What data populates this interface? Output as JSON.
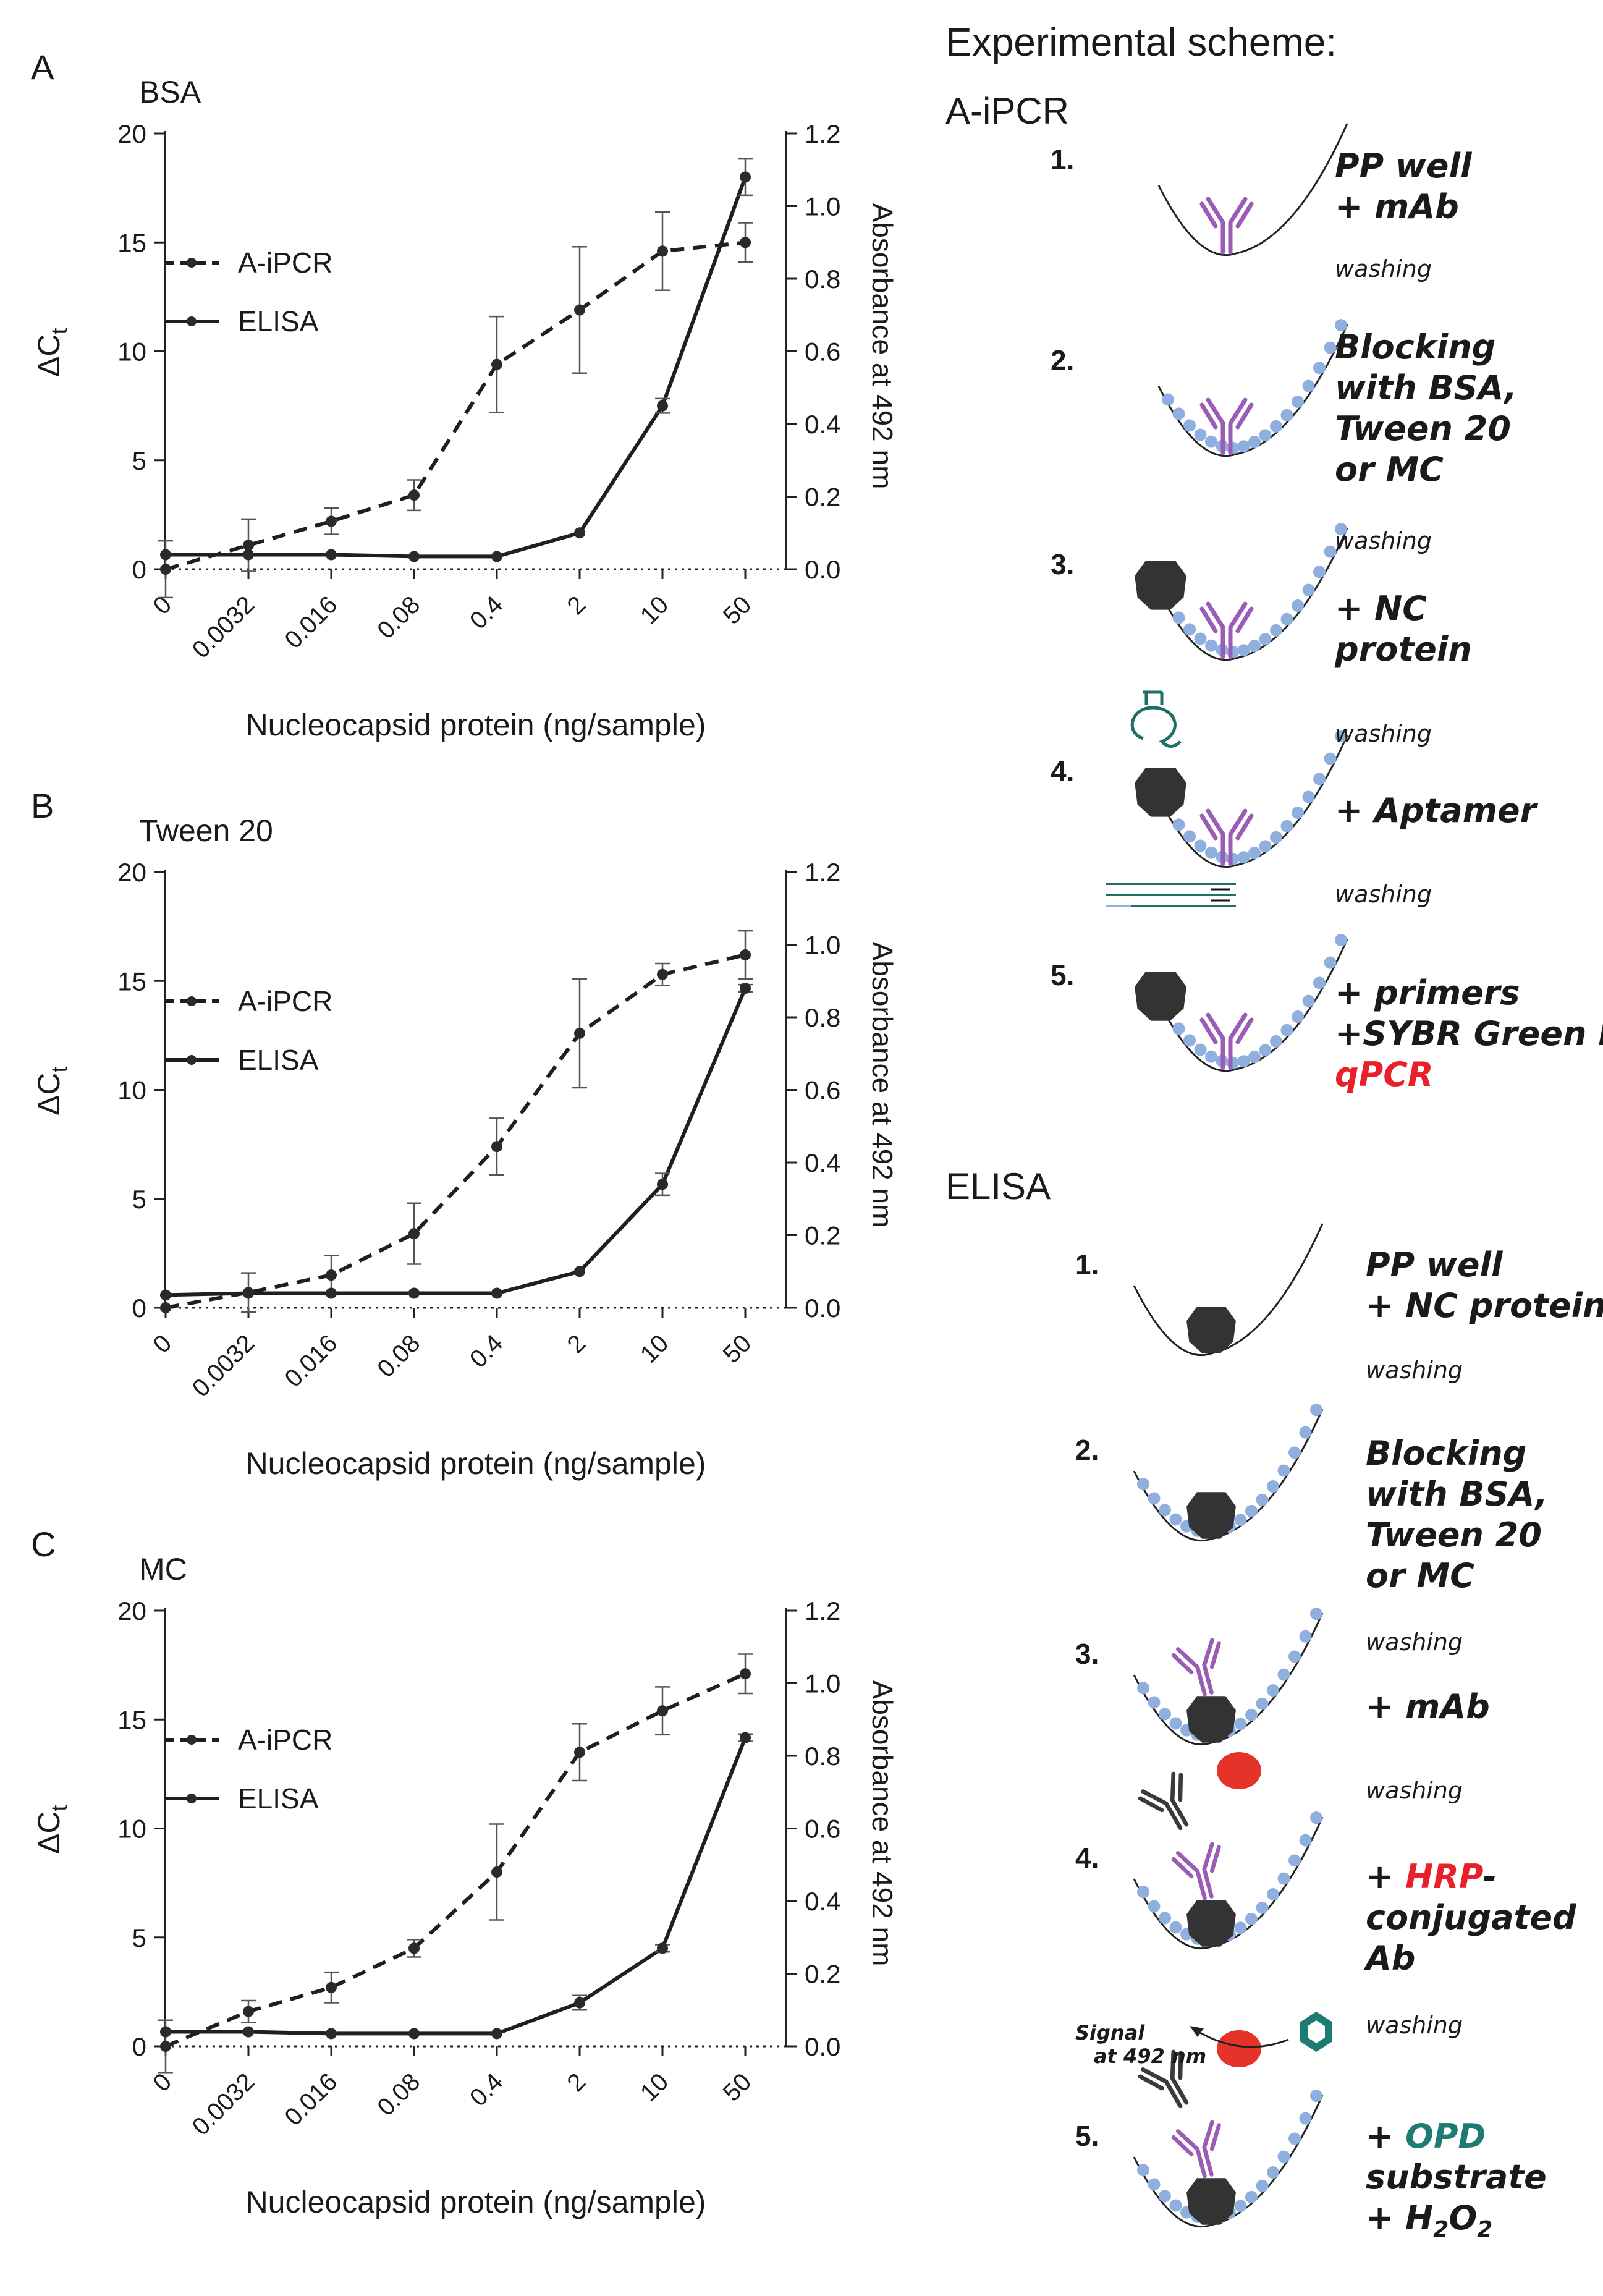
{
  "chart_data": [
    {
      "type": "line",
      "panel_letter": "A",
      "title": "BSA",
      "categories": [
        "0",
        "0.0032",
        "0.016",
        "0.08",
        "0.4",
        "2",
        "10",
        "50"
      ],
      "xlabel": "Nucleocapsid protein (ng/sample)",
      "ylabel_left": "ΔC",
      "ylabel_left_sub": "t",
      "ylabel_right": "Absorbance at 492 nm",
      "ylim_left": [
        0,
        20
      ],
      "ylim_right": [
        0,
        1.2
      ],
      "yticks_left": [
        "0",
        "5",
        "10",
        "15",
        "20"
      ],
      "yticks_right": [
        "0.0",
        "0.2",
        "0.4",
        "0.6",
        "0.8",
        "1.0",
        "1.2"
      ],
      "series": [
        {
          "name": "A-iPCR",
          "style": "dashed",
          "axis": "left",
          "values": [
            0.0,
            1.1,
            2.2,
            3.4,
            9.4,
            11.9,
            14.6,
            15.0
          ],
          "errors": [
            1.3,
            1.2,
            0.6,
            0.7,
            2.2,
            2.9,
            1.8,
            0.9
          ]
        },
        {
          "name": "ELISA",
          "style": "solid",
          "axis": "right",
          "values": [
            0.04,
            0.04,
            0.04,
            0.035,
            0.035,
            0.1,
            0.45,
            1.08
          ],
          "errors": [
            0.0,
            0.0,
            0.0,
            0.0,
            0.0,
            0.0,
            0.02,
            0.05
          ]
        }
      ]
    },
    {
      "type": "line",
      "panel_letter": "B",
      "title": "Tween 20",
      "categories": [
        "0",
        "0.0032",
        "0.016",
        "0.08",
        "0.4",
        "2",
        "10",
        "50"
      ],
      "xlabel": "Nucleocapsid protein (ng/sample)",
      "ylabel_left": "ΔC",
      "ylabel_left_sub": "t",
      "ylabel_right": "Absorbance at 492 nm",
      "ylim_left": [
        0,
        20
      ],
      "ylim_right": [
        0,
        1.2
      ],
      "yticks_left": [
        "0",
        "5",
        "10",
        "15",
        "20"
      ],
      "yticks_right": [
        "0.0",
        "0.2",
        "0.4",
        "0.6",
        "0.8",
        "1.0",
        "1.2"
      ],
      "series": [
        {
          "name": "A-iPCR",
          "style": "dashed",
          "axis": "left",
          "values": [
            0.0,
            0.7,
            1.5,
            3.4,
            7.4,
            12.6,
            15.3,
            16.2
          ],
          "errors": [
            0.0,
            0.9,
            0.9,
            1.4,
            1.3,
            2.5,
            0.5,
            1.1
          ]
        },
        {
          "name": "ELISA",
          "style": "solid",
          "axis": "right",
          "values": [
            0.035,
            0.04,
            0.04,
            0.04,
            0.04,
            0.1,
            0.34,
            0.88
          ],
          "errors": [
            0.0,
            0.0,
            0.0,
            0.0,
            0.0,
            0.0,
            0.03,
            0.01
          ]
        }
      ]
    },
    {
      "type": "line",
      "panel_letter": "C",
      "title": "MC",
      "categories": [
        "0",
        "0.0032",
        "0.016",
        "0.08",
        "0.4",
        "2",
        "10",
        "50"
      ],
      "xlabel": "Nucleocapsid protein (ng/sample)",
      "ylabel_left": "ΔC",
      "ylabel_left_sub": "t",
      "ylabel_right": "Absorbance at 492 nm",
      "ylim_left": [
        0,
        20
      ],
      "ylim_right": [
        0,
        1.2
      ],
      "yticks_left": [
        "0",
        "5",
        "10",
        "15",
        "20"
      ],
      "yticks_right": [
        "0.0",
        "0.2",
        "0.4",
        "0.6",
        "0.8",
        "1.0",
        "1.2"
      ],
      "series": [
        {
          "name": "A-iPCR",
          "style": "dashed",
          "axis": "left",
          "values": [
            0.0,
            1.6,
            2.7,
            4.5,
            8.0,
            13.5,
            15.4,
            17.1
          ],
          "errors": [
            1.2,
            0.5,
            0.7,
            0.4,
            2.2,
            1.3,
            1.1,
            0.9
          ]
        },
        {
          "name": "ELISA",
          "style": "solid",
          "axis": "right",
          "values": [
            0.04,
            0.04,
            0.035,
            0.035,
            0.035,
            0.12,
            0.27,
            0.85
          ],
          "errors": [
            0.0,
            0.0,
            0.0,
            0.0,
            0.0,
            0.02,
            0.01,
            0.01
          ]
        }
      ]
    }
  ],
  "scheme": {
    "title": "Experimental scheme:",
    "aipcr": {
      "heading": "A-iPCR",
      "steps": [
        {
          "num": "1.",
          "lines": [
            "PP well",
            "+ mAb"
          ]
        },
        {
          "num": "2.",
          "lines": [
            "Blocking",
            "with BSA,",
            "Tween 20",
            "or MC"
          ]
        },
        {
          "num": "3.",
          "lines": [
            "+ NC",
            "protein"
          ]
        },
        {
          "num": "4.",
          "lines": [
            "+ Aptamer"
          ]
        },
        {
          "num": "5.",
          "lines": [
            "+ primers",
            "+SYBR Green I"
          ],
          "highlight": "qPCR"
        }
      ],
      "washing": "washing"
    },
    "elisa": {
      "heading": "ELISA",
      "steps": [
        {
          "num": "1.",
          "lines": [
            "PP well",
            "+ NC protein"
          ]
        },
        {
          "num": "2.",
          "lines": [
            "Blocking",
            "with BSA,",
            "Tween 20",
            "or MC"
          ]
        },
        {
          "num": "3.",
          "lines": [
            "+ mAb"
          ]
        },
        {
          "num": "4.",
          "prefix": "+ ",
          "highlight": "HRP",
          "suffix": "-",
          "lines": [
            "conjugated",
            "Ab"
          ]
        },
        {
          "num": "5.",
          "prefix": "+ ",
          "highlight": "OPD",
          "lines": [
            "substrate"
          ],
          "h2o2": "+ H",
          "h2o2_sub1": "2",
          "h2o2_mid": "O",
          "h2o2_sub2": "2"
        }
      ],
      "washing": "washing",
      "signal_line1": "Signal",
      "signal_line2": "at 492 nm"
    }
  },
  "colors": {
    "antibody": "#9a5cb4",
    "beads": "#8fb0de",
    "protein": "#333333",
    "aptamer": "#1f6f66",
    "highlight_red": "#e8202a",
    "highlight_teal": "#1e7b74",
    "hrp": "#e63329",
    "secondary_ab": "#3a3a3a"
  }
}
